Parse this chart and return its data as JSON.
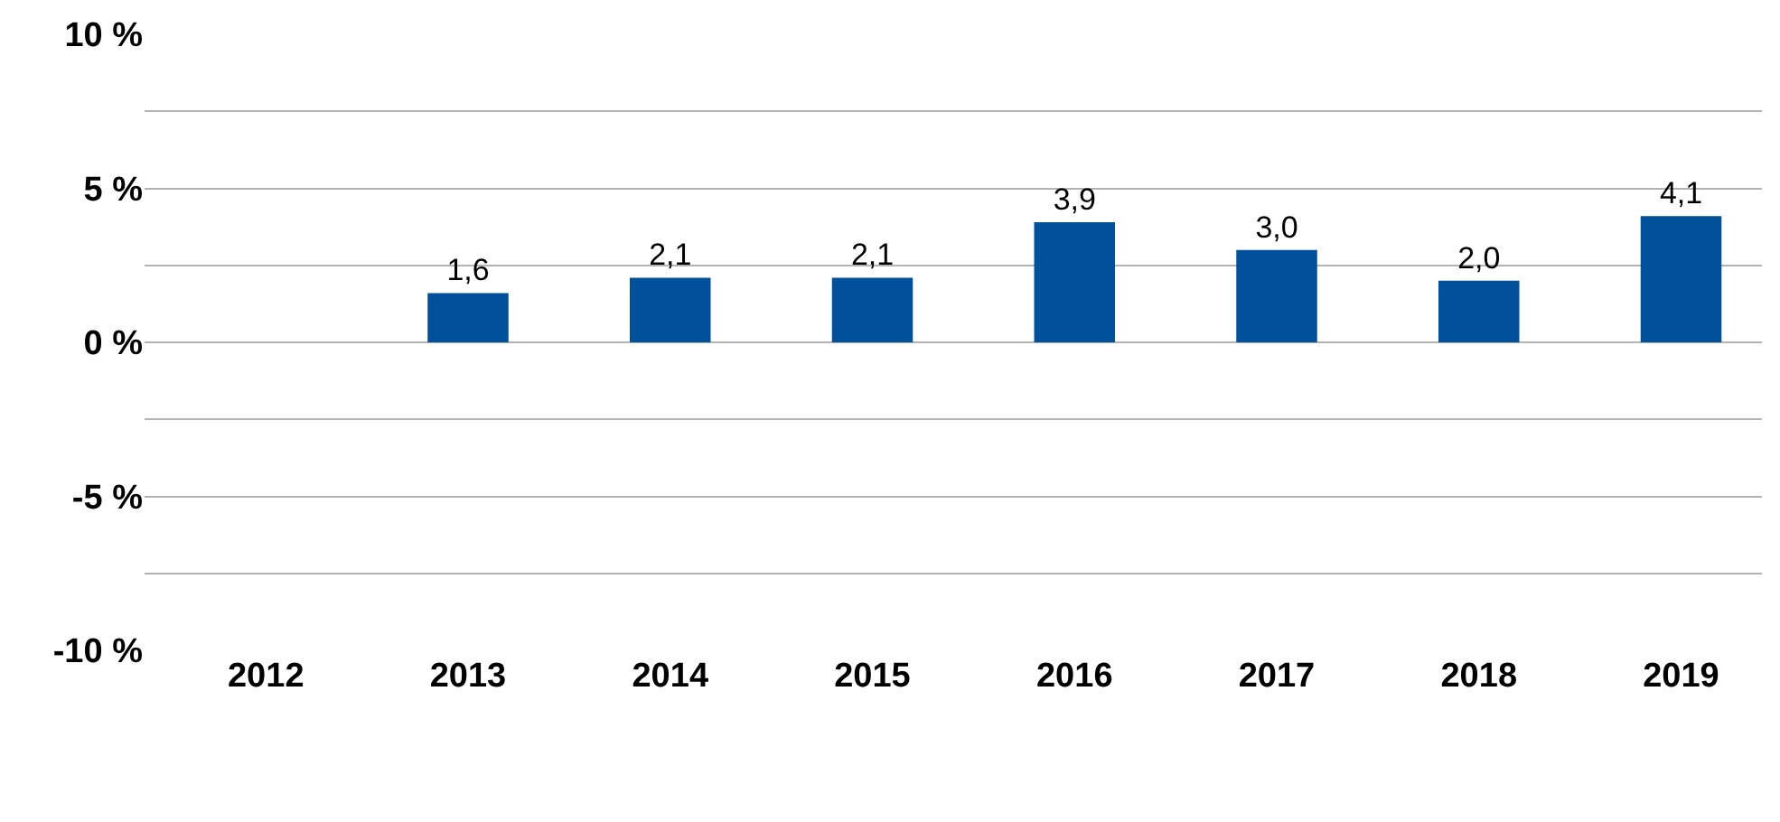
{
  "chart_data": {
    "type": "bar",
    "categories": [
      "2012",
      "2013",
      "2014",
      "2015",
      "2016",
      "2017",
      "2018",
      "2019"
    ],
    "values": [
      null,
      1.6,
      2.1,
      2.1,
      3.9,
      3.0,
      2.0,
      4.1
    ],
    "value_labels": [
      null,
      "1,6",
      "2,1",
      "2,1",
      "3,9",
      "3,0",
      "2,0",
      "4,1"
    ],
    "color": "#00509b",
    "ylim": [
      -10,
      10
    ],
    "yticks": [
      {
        "value": -10,
        "label": "-10 %"
      },
      {
        "value": -7.5,
        "label": null
      },
      {
        "value": -5,
        "label": "-5 %"
      },
      {
        "value": -2.5,
        "label": null
      },
      {
        "value": 0,
        "label": "0 %"
      },
      {
        "value": 2.5,
        "label": null
      },
      {
        "value": 5,
        "label": "5 %"
      },
      {
        "value": 7.5,
        "label": null
      },
      {
        "value": 10,
        "label": "10 %"
      }
    ],
    "grid": "y",
    "legend": false
  }
}
